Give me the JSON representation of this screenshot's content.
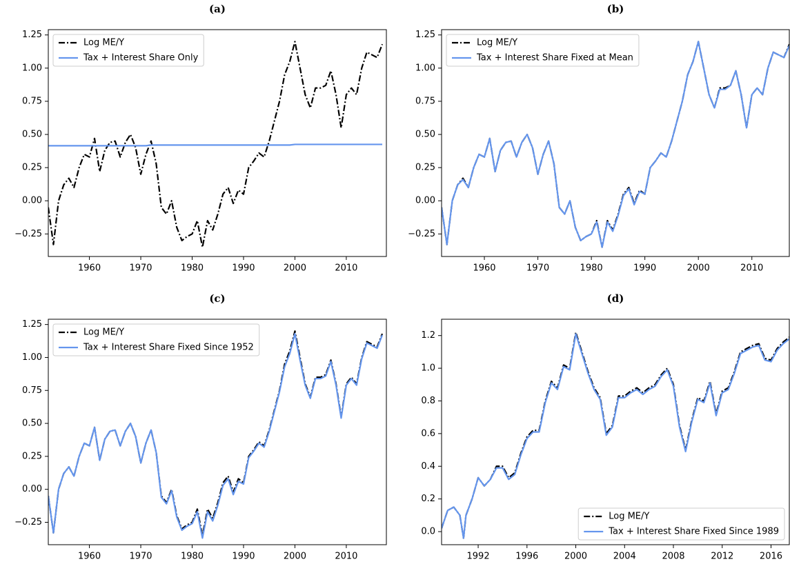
{
  "chart_data": [
    {
      "type": "line",
      "title": "(a)",
      "legend": "upper left",
      "x": [
        1952,
        1953,
        1954,
        1955,
        1956,
        1957,
        1958,
        1959,
        1960,
        1961,
        1962,
        1963,
        1964,
        1965,
        1966,
        1967,
        1968,
        1969,
        1970,
        1971,
        1972,
        1973,
        1974,
        1975,
        1976,
        1977,
        1978,
        1979,
        1980,
        1981,
        1982,
        1983,
        1984,
        1985,
        1986,
        1987,
        1988,
        1989,
        1990,
        1991,
        1992,
        1993,
        1994,
        1995,
        1996,
        1997,
        1998,
        1999,
        2000,
        2001,
        2002,
        2003,
        2004,
        2005,
        2006,
        2007,
        2008,
        2009,
        2010,
        2011,
        2012,
        2013,
        2014,
        2015,
        2016,
        2017
      ],
      "series": [
        {
          "name": "Log ME/Y",
          "color": "#000000",
          "linestyle": "dashdot",
          "values": [
            -0.05,
            -0.33,
            0.0,
            0.12,
            0.17,
            0.1,
            0.25,
            0.35,
            0.33,
            0.47,
            0.22,
            0.38,
            0.44,
            0.45,
            0.33,
            0.44,
            0.5,
            0.4,
            0.2,
            0.35,
            0.45,
            0.28,
            -0.05,
            -0.1,
            0.0,
            -0.2,
            -0.3,
            -0.27,
            -0.25,
            -0.15,
            -0.35,
            -0.15,
            -0.22,
            -0.1,
            0.05,
            0.1,
            -0.02,
            0.08,
            0.05,
            0.25,
            0.3,
            0.36,
            0.33,
            0.45,
            0.6,
            0.75,
            0.95,
            1.05,
            1.2,
            1.0,
            0.8,
            0.7,
            0.85,
            0.85,
            0.87,
            0.98,
            0.8,
            0.55,
            0.8,
            0.85,
            0.8,
            1.0,
            1.12,
            1.1,
            1.08,
            1.18
          ]
        },
        {
          "name": "Tax + Interest Share Only",
          "color": "#6495ed",
          "linestyle": "solid",
          "values": [
            0.415,
            0.415,
            0.415,
            0.415,
            0.415,
            0.415,
            0.415,
            0.415,
            0.415,
            0.415,
            0.415,
            0.415,
            0.415,
            0.415,
            0.415,
            0.415,
            0.415,
            0.415,
            0.415,
            0.415,
            0.42,
            0.42,
            0.42,
            0.42,
            0.42,
            0.42,
            0.42,
            0.42,
            0.42,
            0.42,
            0.42,
            0.42,
            0.42,
            0.42,
            0.42,
            0.42,
            0.42,
            0.42,
            0.42,
            0.42,
            0.42,
            0.42,
            0.42,
            0.42,
            0.42,
            0.42,
            0.42,
            0.42,
            0.425,
            0.425,
            0.425,
            0.425,
            0.425,
            0.425,
            0.425,
            0.425,
            0.425,
            0.425,
            0.425,
            0.425,
            0.425,
            0.425,
            0.425,
            0.425,
            0.425,
            0.425
          ]
        }
      ],
      "xlim": [
        1952,
        2017.8
      ],
      "xticks": [
        1960,
        1970,
        1980,
        1990,
        2000,
        2010
      ],
      "ylim": [
        -0.42,
        1.29
      ],
      "yticks": [
        {
          "value": -0.25,
          "label": "−0.25"
        },
        {
          "value": 0,
          "label": "0.00"
        },
        0.25,
        {
          "value": 0.5,
          "label": "0.50"
        },
        0.75,
        {
          "value": 1,
          "label": "1.00"
        },
        1.25
      ]
    },
    {
      "type": "line",
      "title": "(b)",
      "legend": "upper left",
      "x": [
        1952,
        1953,
        1954,
        1955,
        1956,
        1957,
        1958,
        1959,
        1960,
        1961,
        1962,
        1963,
        1964,
        1965,
        1966,
        1967,
        1968,
        1969,
        1970,
        1971,
        1972,
        1973,
        1974,
        1975,
        1976,
        1977,
        1978,
        1979,
        1980,
        1981,
        1982,
        1983,
        1984,
        1985,
        1986,
        1987,
        1988,
        1989,
        1990,
        1991,
        1992,
        1993,
        1994,
        1995,
        1996,
        1997,
        1998,
        1999,
        2000,
        2001,
        2002,
        2003,
        2004,
        2005,
        2006,
        2007,
        2008,
        2009,
        2010,
        2011,
        2012,
        2013,
        2014,
        2015,
        2016,
        2017
      ],
      "series": [
        {
          "name": "Log ME/Y",
          "color": "#000000",
          "linestyle": "dashdot",
          "values": [
            -0.05,
            -0.33,
            0.0,
            0.12,
            0.17,
            0.1,
            0.25,
            0.35,
            0.33,
            0.47,
            0.22,
            0.38,
            0.44,
            0.45,
            0.33,
            0.44,
            0.5,
            0.4,
            0.2,
            0.35,
            0.45,
            0.28,
            -0.05,
            -0.1,
            0.0,
            -0.2,
            -0.3,
            -0.27,
            -0.25,
            -0.15,
            -0.35,
            -0.15,
            -0.22,
            -0.1,
            0.05,
            0.1,
            -0.02,
            0.08,
            0.05,
            0.25,
            0.3,
            0.36,
            0.33,
            0.45,
            0.6,
            0.75,
            0.95,
            1.05,
            1.2,
            1.0,
            0.8,
            0.7,
            0.85,
            0.85,
            0.87,
            0.98,
            0.8,
            0.55,
            0.8,
            0.85,
            0.8,
            1.0,
            1.12,
            1.1,
            1.08,
            1.18
          ]
        },
        {
          "name": "Tax + Interest Share Fixed at Mean",
          "color": "#6495ed",
          "linestyle": "solid",
          "values": [
            -0.05,
            -0.33,
            0.0,
            0.12,
            0.16,
            0.1,
            0.25,
            0.35,
            0.33,
            0.47,
            0.22,
            0.38,
            0.44,
            0.45,
            0.33,
            0.44,
            0.5,
            0.4,
            0.2,
            0.35,
            0.45,
            0.28,
            -0.05,
            -0.1,
            0.0,
            -0.2,
            -0.3,
            -0.27,
            -0.25,
            -0.16,
            -0.35,
            -0.16,
            -0.23,
            -0.11,
            0.04,
            0.09,
            -0.03,
            0.07,
            0.05,
            0.25,
            0.3,
            0.36,
            0.33,
            0.45,
            0.6,
            0.75,
            0.95,
            1.05,
            1.2,
            1.0,
            0.8,
            0.7,
            0.84,
            0.84,
            0.87,
            0.98,
            0.8,
            0.55,
            0.8,
            0.85,
            0.8,
            1.0,
            1.12,
            1.1,
            1.08,
            1.17
          ]
        }
      ],
      "xlim": [
        1952,
        2017
      ],
      "xticks": [
        1960,
        1970,
        1980,
        1990,
        2000,
        2010
      ],
      "ylim": [
        -0.42,
        1.29
      ],
      "yticks": [
        {
          "value": -0.25,
          "label": "−0.25"
        },
        {
          "value": 0,
          "label": "0.00"
        },
        0.25,
        {
          "value": 0.5,
          "label": "0.50"
        },
        0.75,
        {
          "value": 1,
          "label": "1.00"
        },
        1.25
      ]
    },
    {
      "type": "line",
      "title": "(c)",
      "legend": "upper left",
      "x": [
        1952,
        1953,
        1954,
        1955,
        1956,
        1957,
        1958,
        1959,
        1960,
        1961,
        1962,
        1963,
        1964,
        1965,
        1966,
        1967,
        1968,
        1969,
        1970,
        1971,
        1972,
        1973,
        1974,
        1975,
        1976,
        1977,
        1978,
        1979,
        1980,
        1981,
        1982,
        1983,
        1984,
        1985,
        1986,
        1987,
        1988,
        1989,
        1990,
        1991,
        1992,
        1993,
        1994,
        1995,
        1996,
        1997,
        1998,
        1999,
        2000,
        2001,
        2002,
        2003,
        2004,
        2005,
        2006,
        2007,
        2008,
        2009,
        2010,
        2011,
        2012,
        2013,
        2014,
        2015,
        2016,
        2017
      ],
      "series": [
        {
          "name": "Log ME/Y",
          "color": "#000000",
          "linestyle": "dashdot",
          "values": [
            -0.05,
            -0.33,
            0.0,
            0.12,
            0.17,
            0.1,
            0.25,
            0.35,
            0.33,
            0.47,
            0.22,
            0.38,
            0.44,
            0.45,
            0.33,
            0.44,
            0.5,
            0.4,
            0.2,
            0.35,
            0.45,
            0.28,
            -0.05,
            -0.1,
            0.0,
            -0.2,
            -0.3,
            -0.27,
            -0.25,
            -0.15,
            -0.35,
            -0.15,
            -0.22,
            -0.1,
            0.05,
            0.1,
            -0.02,
            0.08,
            0.05,
            0.25,
            0.3,
            0.36,
            0.33,
            0.45,
            0.6,
            0.75,
            0.95,
            1.05,
            1.2,
            1.0,
            0.8,
            0.7,
            0.85,
            0.85,
            0.87,
            0.98,
            0.8,
            0.55,
            0.8,
            0.85,
            0.8,
            1.0,
            1.12,
            1.1,
            1.08,
            1.18
          ]
        },
        {
          "name": "Tax + Interest Share Fixed Since 1952",
          "color": "#6495ed",
          "linestyle": "solid",
          "values": [
            -0.05,
            -0.33,
            0.0,
            0.12,
            0.17,
            0.1,
            0.25,
            0.35,
            0.33,
            0.47,
            0.22,
            0.38,
            0.44,
            0.45,
            0.33,
            0.44,
            0.5,
            0.4,
            0.2,
            0.35,
            0.45,
            0.28,
            -0.06,
            -0.11,
            -0.01,
            -0.21,
            -0.31,
            -0.28,
            -0.26,
            -0.17,
            -0.37,
            -0.17,
            -0.24,
            -0.12,
            0.03,
            0.08,
            -0.04,
            0.06,
            0.04,
            0.24,
            0.29,
            0.35,
            0.32,
            0.44,
            0.59,
            0.74,
            0.93,
            1.03,
            1.18,
            0.98,
            0.79,
            0.69,
            0.84,
            0.84,
            0.86,
            0.97,
            0.79,
            0.54,
            0.79,
            0.84,
            0.79,
            0.99,
            1.11,
            1.09,
            1.07,
            1.17
          ]
        }
      ],
      "xlim": [
        1952,
        2017.8
      ],
      "xticks": [
        1960,
        1970,
        1980,
        1990,
        2000,
        2010
      ],
      "ylim": [
        -0.42,
        1.29
      ],
      "yticks": [
        {
          "value": -0.25,
          "label": "−0.25"
        },
        {
          "value": 0,
          "label": "0.00"
        },
        0.25,
        {
          "value": 0.5,
          "label": "0.50"
        },
        0.75,
        {
          "value": 1,
          "label": "1.00"
        },
        1.25
      ]
    },
    {
      "type": "line",
      "title": "(d)",
      "legend": "lower right",
      "x": [
        1989,
        1989.5,
        1990,
        1990.5,
        1990.8,
        1991,
        1991.5,
        1992,
        1992.5,
        1993,
        1993.5,
        1994,
        1994.5,
        1995,
        1995.5,
        1996,
        1996.5,
        1997,
        1997.5,
        1998,
        1998.5,
        1999,
        1999.5,
        2000,
        2000.5,
        2001,
        2001.5,
        2002,
        2002.5,
        2003,
        2003.5,
        2004,
        2004.5,
        2005,
        2005.5,
        2006,
        2006.5,
        2007,
        2007.5,
        2008,
        2008.5,
        2009,
        2009.5,
        2010,
        2010.5,
        2011,
        2011.5,
        2012,
        2012.5,
        2013,
        2013.5,
        2014,
        2014.5,
        2015,
        2015.5,
        2016,
        2016.5,
        2017,
        2017.5
      ],
      "series": [
        {
          "name": "Log ME/Y",
          "color": "#000000",
          "linestyle": "dashdot",
          "values": [
            0.02,
            0.13,
            0.15,
            0.1,
            -0.04,
            0.1,
            0.2,
            0.33,
            0.28,
            0.32,
            0.4,
            0.4,
            0.33,
            0.36,
            0.48,
            0.58,
            0.62,
            0.62,
            0.8,
            0.92,
            0.88,
            1.02,
            1.0,
            1.22,
            1.1,
            0.98,
            0.88,
            0.82,
            0.6,
            0.65,
            0.83,
            0.83,
            0.86,
            0.88,
            0.85,
            0.88,
            0.9,
            0.96,
            1.0,
            0.9,
            0.65,
            0.5,
            0.68,
            0.82,
            0.8,
            0.92,
            0.72,
            0.86,
            0.88,
            0.98,
            1.1,
            1.12,
            1.14,
            1.15,
            1.06,
            1.05,
            1.12,
            1.16,
            1.19
          ]
        },
        {
          "name": "Tax + Interest Share Fixed Since 1989",
          "color": "#6495ed",
          "linestyle": "solid",
          "values": [
            0.02,
            0.13,
            0.15,
            0.1,
            -0.04,
            0.1,
            0.2,
            0.33,
            0.28,
            0.32,
            0.39,
            0.39,
            0.32,
            0.35,
            0.47,
            0.57,
            0.61,
            0.61,
            0.79,
            0.91,
            0.87,
            1.01,
            0.99,
            1.21,
            1.09,
            0.97,
            0.87,
            0.81,
            0.59,
            0.64,
            0.82,
            0.82,
            0.85,
            0.87,
            0.84,
            0.87,
            0.89,
            0.95,
            0.99,
            0.89,
            0.64,
            0.49,
            0.67,
            0.81,
            0.79,
            0.91,
            0.71,
            0.85,
            0.87,
            0.97,
            1.09,
            1.11,
            1.13,
            1.14,
            1.05,
            1.04,
            1.11,
            1.15,
            1.18
          ]
        }
      ],
      "xlim": [
        1989,
        2017.5
      ],
      "xticks": [
        1992,
        1996,
        2000,
        2004,
        2008,
        2012,
        2016
      ],
      "ylim": [
        -0.08,
        1.3
      ],
      "yticks": [
        {
          "value": 0,
          "label": "0.0"
        },
        0.2,
        0.4,
        0.6,
        0.8,
        {
          "value": 1,
          "label": "1.0"
        },
        1.2
      ]
    }
  ]
}
